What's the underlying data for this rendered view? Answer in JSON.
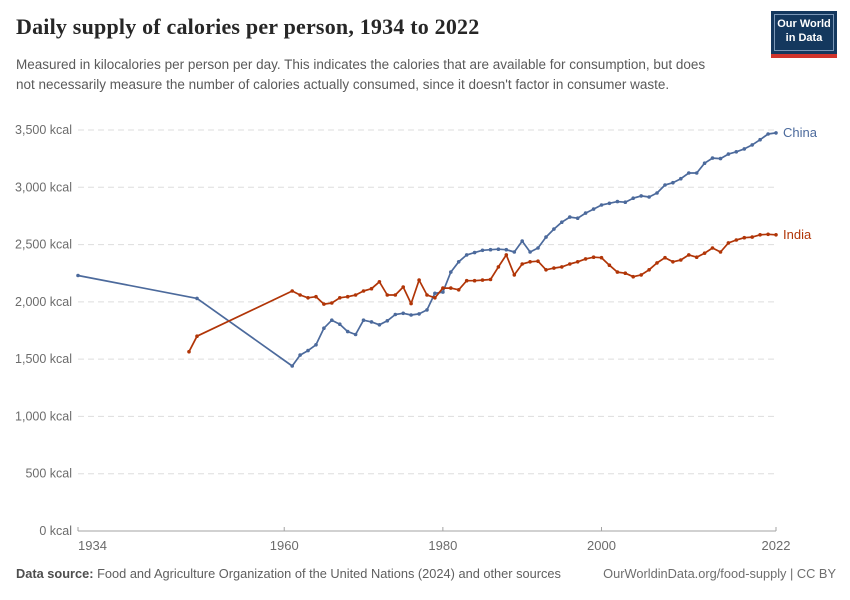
{
  "header": {
    "title": "Daily supply of calories per person, 1934 to 2022",
    "subtitle": "Measured in kilocalories per person per day. This indicates the calories that are available for consumption, but does not necessarily measure the number of calories actually consumed, since it doesn't factor in consumer waste.",
    "logo": {
      "line1": "Our World",
      "line2": "in Data"
    }
  },
  "footer": {
    "source_label": "Data source:",
    "source_text": "Food and Agriculture Organization of the United Nations (2024) and other sources",
    "link_text": "OurWorldinData.org/food-supply | CC BY"
  },
  "colors": {
    "china_line": "#4C6A9C",
    "india_line": "#B13507",
    "grid": "#dddddd",
    "axis": "#a3a3a3",
    "logo_navy": "#14385e",
    "logo_red": "#d0342c"
  },
  "chart_data": {
    "type": "line",
    "title": "Daily supply of calories per person, 1934 to 2022",
    "xlabel": "",
    "ylabel": "",
    "unit": "kcal",
    "xlim": [
      1934,
      2022
    ],
    "ylim": [
      0,
      3500
    ],
    "grid": "horizontal-dashed",
    "legend_position": "line-end-labels",
    "xticks": [
      {
        "value": 1934,
        "label": "1934"
      },
      {
        "value": 1960,
        "label": "1960"
      },
      {
        "value": 1980,
        "label": "1980"
      },
      {
        "value": 2000,
        "label": "2000"
      },
      {
        "value": 2022,
        "label": "2022"
      }
    ],
    "yticks": [
      {
        "value": 0,
        "label": "0 kcal"
      },
      {
        "value": 500,
        "label": "500 kcal"
      },
      {
        "value": 1000,
        "label": "1,000 kcal"
      },
      {
        "value": 1500,
        "label": "1,500 kcal"
      },
      {
        "value": 2000,
        "label": "2,000 kcal"
      },
      {
        "value": 2500,
        "label": "2,500 kcal"
      },
      {
        "value": 3000,
        "label": "3,000 kcal"
      },
      {
        "value": 3500,
        "label": "3,500 kcal"
      }
    ],
    "series": [
      {
        "name": "China",
        "color": "#4C6A9C",
        "points": [
          [
            1934,
            2230
          ],
          [
            1949,
            2030
          ],
          [
            1961,
            1440
          ],
          [
            1962,
            1535
          ],
          [
            1963,
            1575
          ],
          [
            1964,
            1625
          ],
          [
            1965,
            1770
          ],
          [
            1966,
            1840
          ],
          [
            1967,
            1805
          ],
          [
            1968,
            1740
          ],
          [
            1969,
            1715
          ],
          [
            1970,
            1840
          ],
          [
            1971,
            1825
          ],
          [
            1972,
            1800
          ],
          [
            1973,
            1835
          ],
          [
            1974,
            1890
          ],
          [
            1975,
            1900
          ],
          [
            1976,
            1885
          ],
          [
            1977,
            1895
          ],
          [
            1978,
            1930
          ],
          [
            1979,
            2075
          ],
          [
            1980,
            2085
          ],
          [
            1981,
            2260
          ],
          [
            1982,
            2350
          ],
          [
            1983,
            2410
          ],
          [
            1984,
            2430
          ],
          [
            1985,
            2450
          ],
          [
            1986,
            2455
          ],
          [
            1987,
            2460
          ],
          [
            1988,
            2455
          ],
          [
            1989,
            2435
          ],
          [
            1990,
            2530
          ],
          [
            1991,
            2435
          ],
          [
            1992,
            2470
          ],
          [
            1993,
            2565
          ],
          [
            1994,
            2635
          ],
          [
            1995,
            2695
          ],
          [
            1996,
            2740
          ],
          [
            1997,
            2730
          ],
          [
            1998,
            2775
          ],
          [
            1999,
            2810
          ],
          [
            2000,
            2845
          ],
          [
            2001,
            2860
          ],
          [
            2002,
            2875
          ],
          [
            2003,
            2870
          ],
          [
            2004,
            2905
          ],
          [
            2005,
            2925
          ],
          [
            2006,
            2915
          ],
          [
            2007,
            2950
          ],
          [
            2008,
            3020
          ],
          [
            2009,
            3040
          ],
          [
            2010,
            3075
          ],
          [
            2011,
            3125
          ],
          [
            2012,
            3125
          ],
          [
            2013,
            3210
          ],
          [
            2014,
            3255
          ],
          [
            2015,
            3250
          ],
          [
            2016,
            3290
          ],
          [
            2017,
            3310
          ],
          [
            2018,
            3335
          ],
          [
            2019,
            3370
          ],
          [
            2020,
            3415
          ],
          [
            2021,
            3465
          ],
          [
            2022,
            3475
          ]
        ]
      },
      {
        "name": "India",
        "color": "#B13507",
        "points": [
          [
            1948,
            1565
          ],
          [
            1949,
            1700
          ],
          [
            1961,
            2095
          ],
          [
            1962,
            2060
          ],
          [
            1963,
            2035
          ],
          [
            1964,
            2045
          ],
          [
            1965,
            1980
          ],
          [
            1966,
            1990
          ],
          [
            1967,
            2035
          ],
          [
            1968,
            2045
          ],
          [
            1969,
            2060
          ],
          [
            1970,
            2095
          ],
          [
            1971,
            2115
          ],
          [
            1972,
            2175
          ],
          [
            1973,
            2060
          ],
          [
            1974,
            2060
          ],
          [
            1975,
            2130
          ],
          [
            1976,
            1985
          ],
          [
            1977,
            2190
          ],
          [
            1978,
            2060
          ],
          [
            1979,
            2035
          ],
          [
            1980,
            2120
          ],
          [
            1981,
            2120
          ],
          [
            1982,
            2105
          ],
          [
            1983,
            2185
          ],
          [
            1984,
            2185
          ],
          [
            1985,
            2190
          ],
          [
            1986,
            2195
          ],
          [
            1987,
            2305
          ],
          [
            1988,
            2410
          ],
          [
            1989,
            2235
          ],
          [
            1990,
            2330
          ],
          [
            1991,
            2350
          ],
          [
            1992,
            2355
          ],
          [
            1993,
            2280
          ],
          [
            1994,
            2295
          ],
          [
            1995,
            2305
          ],
          [
            1996,
            2330
          ],
          [
            1997,
            2350
          ],
          [
            1998,
            2375
          ],
          [
            1999,
            2390
          ],
          [
            2000,
            2385
          ],
          [
            2001,
            2320
          ],
          [
            2002,
            2260
          ],
          [
            2003,
            2250
          ],
          [
            2004,
            2220
          ],
          [
            2005,
            2235
          ],
          [
            2006,
            2280
          ],
          [
            2007,
            2340
          ],
          [
            2008,
            2385
          ],
          [
            2009,
            2350
          ],
          [
            2010,
            2365
          ],
          [
            2011,
            2410
          ],
          [
            2012,
            2390
          ],
          [
            2013,
            2425
          ],
          [
            2014,
            2470
          ],
          [
            2015,
            2435
          ],
          [
            2016,
            2515
          ],
          [
            2017,
            2540
          ],
          [
            2018,
            2560
          ],
          [
            2019,
            2565
          ],
          [
            2020,
            2585
          ],
          [
            2021,
            2590
          ],
          [
            2022,
            2585
          ]
        ]
      }
    ]
  }
}
